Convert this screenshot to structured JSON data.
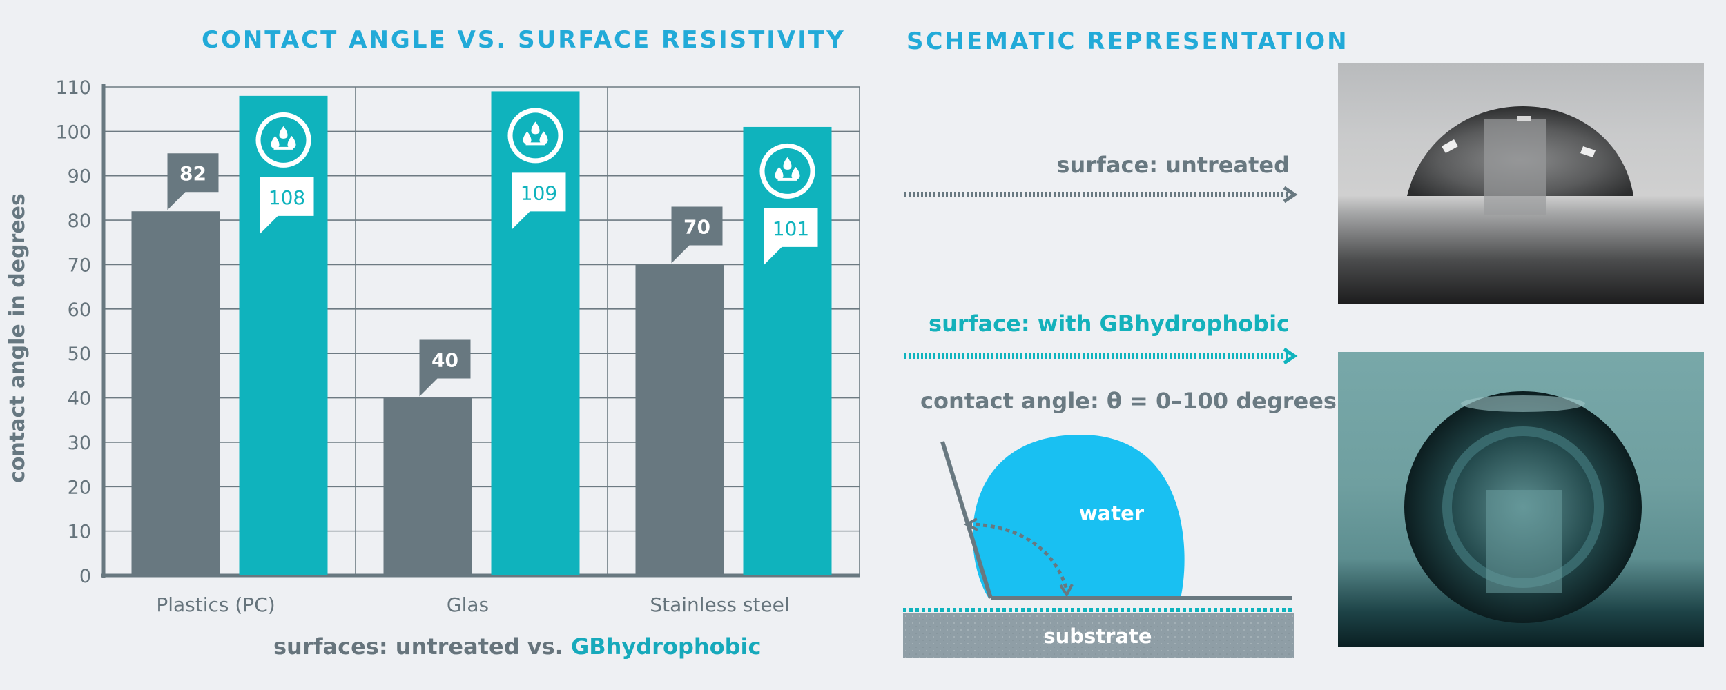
{
  "chart_title": "CONTACT ANGLE VS. SURFACE RESISTIVITY",
  "schematic_title": "SCHEMATIC REPRESENTATION",
  "legend": {
    "prefix": "surfaces: untreated vs. ",
    "highlight": "GBhydrophobic"
  },
  "schematic": {
    "untreated_label": "surface: untreated",
    "treated_label": "surface: with GBhydrophobic",
    "angle_label": "contact angle: θ = 0–100 degrees",
    "water_label": "water",
    "substrate_label": "substrate"
  },
  "colors": {
    "untreated": "#687880",
    "treated": "#0fb3bd",
    "accent": "#22aad8",
    "water": "#19c0f2"
  },
  "chart_data": {
    "type": "bar",
    "title": "CONTACT ANGLE VS. SURFACE RESISTIVITY",
    "xlabel": "surfaces: untreated vs. GBhydrophobic",
    "ylabel": "contact angle in degrees",
    "ylim": [
      0,
      110
    ],
    "yticks": [
      0,
      10,
      20,
      30,
      40,
      50,
      60,
      70,
      80,
      90,
      100,
      110
    ],
    "categories": [
      "Plastics (PC)",
      "Glas",
      "Stainless steel"
    ],
    "series": [
      {
        "name": "untreated",
        "values": [
          82,
          40,
          70
        ]
      },
      {
        "name": "GBhydrophobic",
        "values": [
          108,
          109,
          101
        ]
      }
    ]
  }
}
